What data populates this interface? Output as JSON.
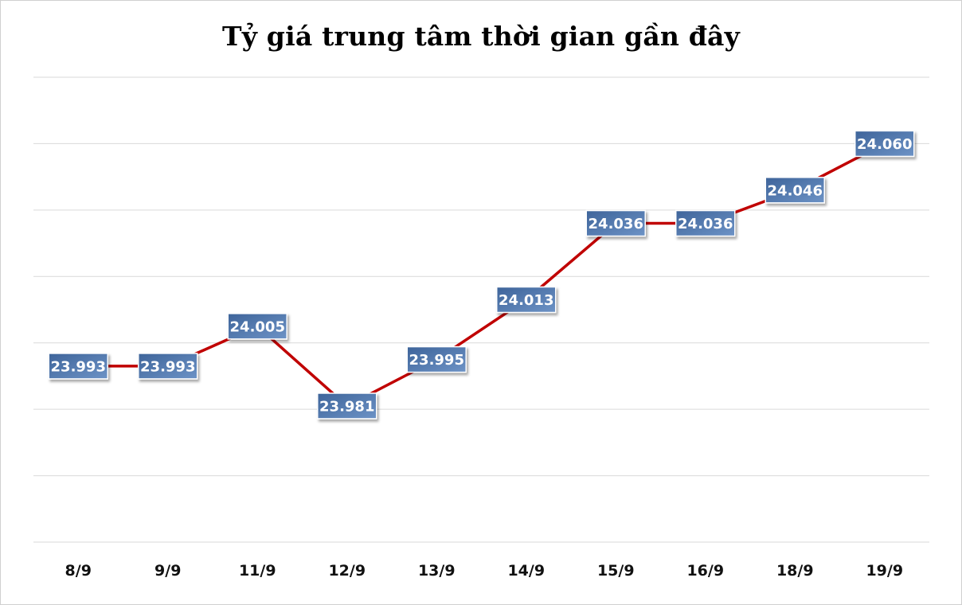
{
  "chart_data": {
    "type": "line",
    "title": "Tỷ giá trung tâm thời gian gần đây",
    "xlabel": "",
    "ylabel": "",
    "categories": [
      "8/9",
      "9/9",
      "11/9",
      "12/9",
      "13/9",
      "14/9",
      "15/9",
      "16/9",
      "18/9",
      "19/9"
    ],
    "values": [
      23993,
      23993,
      24005,
      23981,
      23995,
      24013,
      24036,
      24036,
      24046,
      24060
    ],
    "data_labels": [
      "23.993",
      "23.993",
      "24.005",
      "23.981",
      "23.995",
      "24.013",
      "24.036",
      "24.036",
      "24.046",
      "24.060"
    ],
    "ylim": [
      23940,
      24080
    ],
    "y_gridline_step": 20,
    "grid": true,
    "legend": "none",
    "colors": {
      "line": "#c00000",
      "label_fill": "#4a72a8",
      "gridline": "#d9d9d9"
    }
  }
}
